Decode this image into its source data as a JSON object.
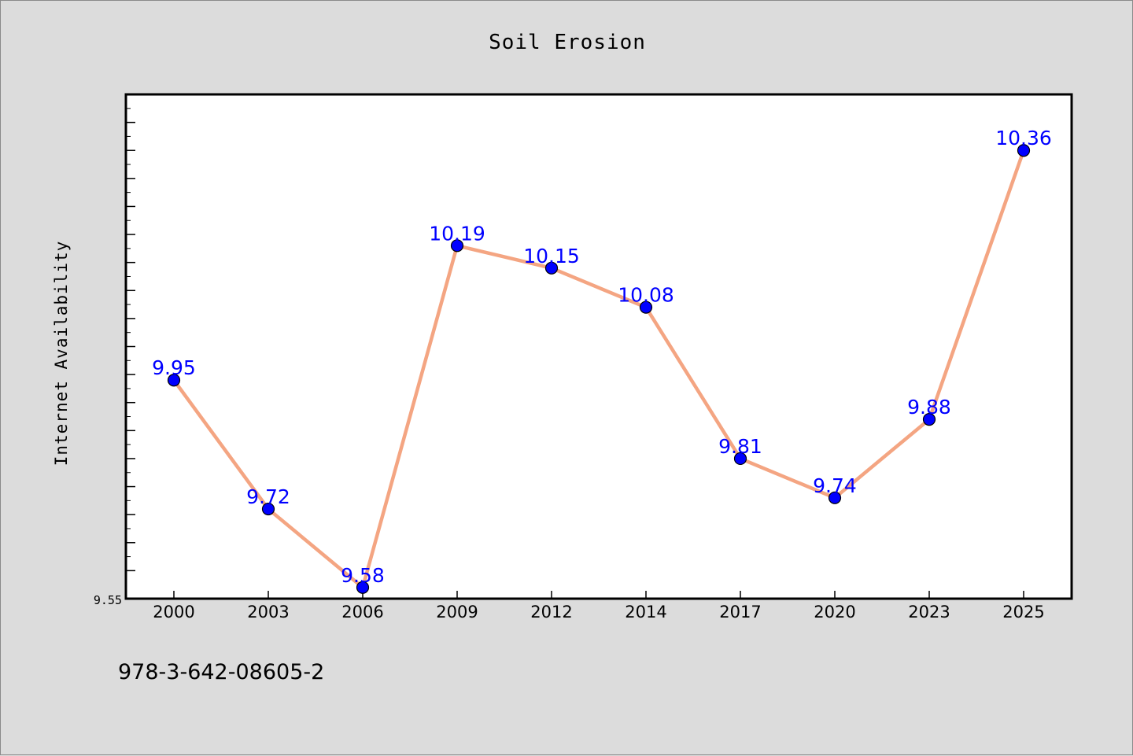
{
  "chart_data": {
    "type": "line",
    "title": "Soil Erosion",
    "xlabel": "",
    "ylabel": "Internet Availability",
    "categories": [
      "2000",
      "2003",
      "2006",
      "2009",
      "2012",
      "2014",
      "2017",
      "2020",
      "2023",
      "2025"
    ],
    "series": [
      {
        "values": [
          9.95,
          9.72,
          9.58,
          10.19,
          10.15,
          10.08,
          9.81,
          9.74,
          9.88,
          10.36
        ],
        "labels": [
          "9.95",
          "9.72",
          "9.58",
          "10.19",
          "10.15",
          "10.08",
          "9.81",
          "9.74",
          "9.88",
          "10.36"
        ]
      }
    ],
    "ylim": [
      9.56,
      10.46
    ],
    "y_tick_labels": [
      "9.55"
    ],
    "grid": false,
    "legend": "none",
    "colors": {
      "line": "#f4a582",
      "marker": "#0000ff",
      "data_label": "#0000ff",
      "plot_background": "#ffffff",
      "page_background": "#dcdcdc"
    }
  },
  "footer": {
    "isbn": "978-3-642-08605-2"
  }
}
